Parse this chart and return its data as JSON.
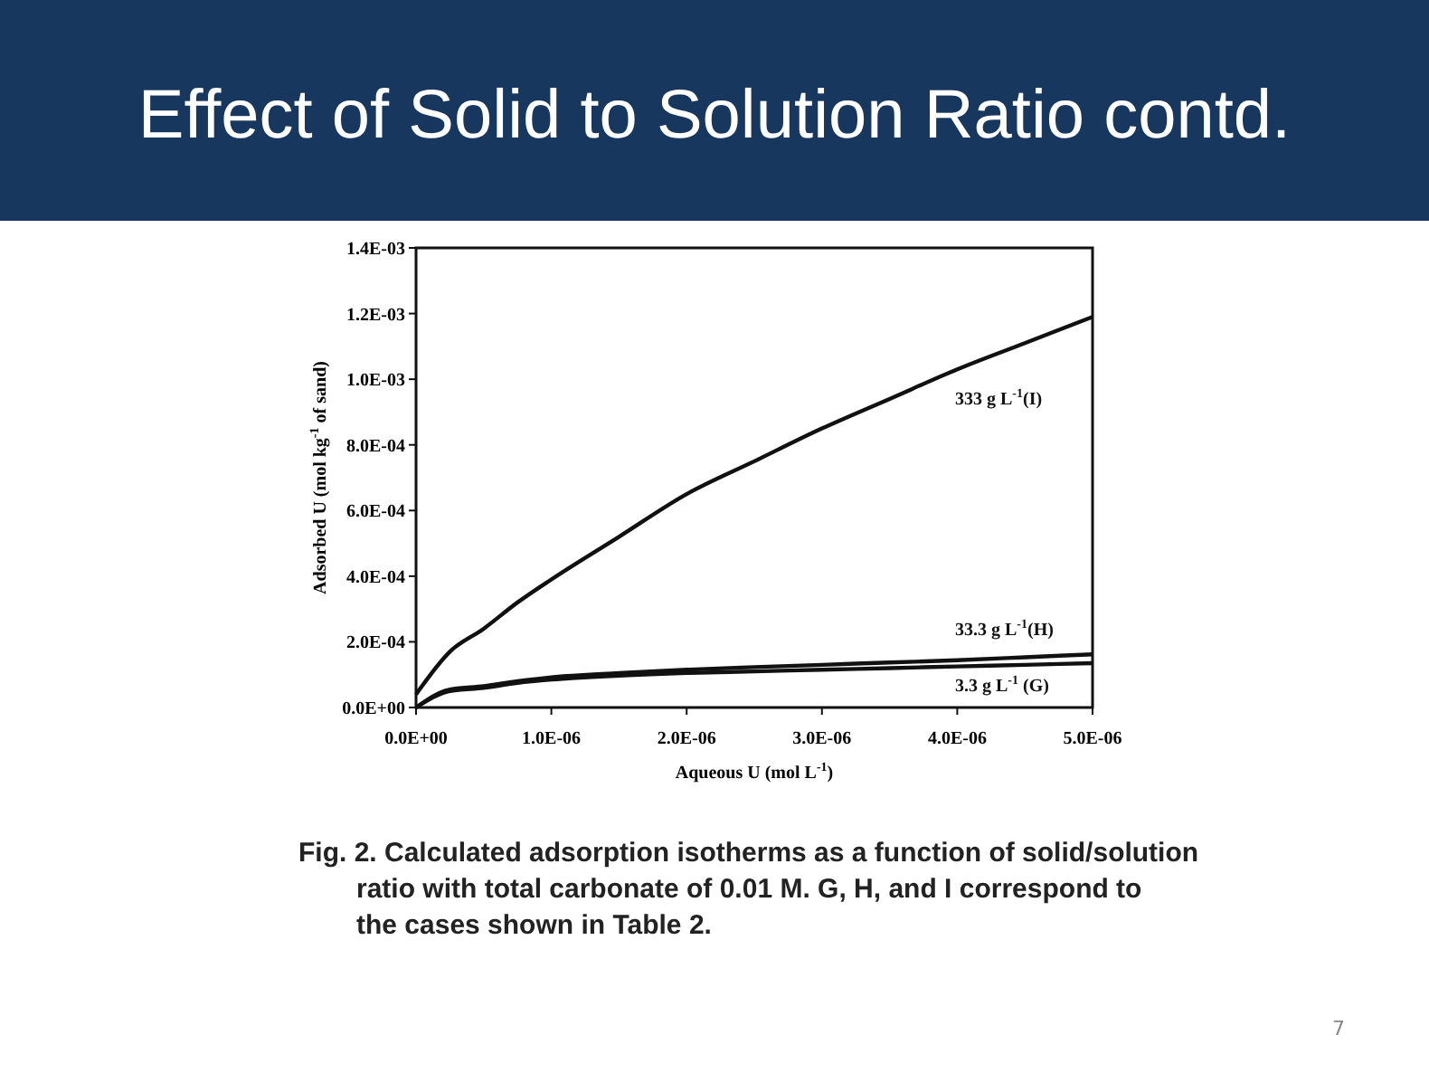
{
  "chart_data": {
    "type": "line",
    "title": "Effect of Solid to Solution Ratio contd.",
    "xlabel": "Aqueous U (mol L$^{-1}$)",
    "ylabel": "Adsorbed U (mol kg$^{-1}$ of sand)",
    "xlim": [
      0,
      5e-06
    ],
    "ylim": [
      0,
      0.0014
    ],
    "xticks": [
      {
        "value": 0,
        "label": "0.0E+00"
      },
      {
        "value": 1e-06,
        "label": "1.0E-06"
      },
      {
        "value": 2e-06,
        "label": "2.0E-06"
      },
      {
        "value": 3e-06,
        "label": "3.0E-06"
      },
      {
        "value": 4e-06,
        "label": "4.0E-06"
      },
      {
        "value": 5e-06,
        "label": "5.0E-06"
      }
    ],
    "yticks": [
      {
        "value": 0,
        "label": "0.0E+00"
      },
      {
        "value": 0.0002,
        "label": "2.0E-04"
      },
      {
        "value": 0.0004,
        "label": "4.0E-04"
      },
      {
        "value": 0.0006,
        "label": "6.0E-04"
      },
      {
        "value": 0.0008,
        "label": "8.0E-04"
      },
      {
        "value": 0.001,
        "label": "1.0E-03"
      },
      {
        "value": 0.0012,
        "label": "1.2E-03"
      },
      {
        "value": 0.0014,
        "label": "1.4E-03"
      }
    ],
    "grid": false,
    "marker": "none",
    "line_style": "solid",
    "x": [
      0,
      2.5e-07,
      5e-07,
      7.5e-07,
      1e-06,
      1.5e-06,
      2e-06,
      2.5e-06,
      3e-06,
      3.5e-06,
      4e-06,
      4.5e-06,
      5e-06
    ],
    "series": [
      {
        "name": "333 g L$^{-1}$(I)",
        "color": "#111111",
        "values": [
          4e-05,
          0.00017,
          0.00024,
          0.00032,
          0.00039,
          0.00052,
          0.00065,
          0.00075,
          0.00085,
          0.00094,
          0.00103,
          0.00111,
          0.00119
        ]
      },
      {
        "name": "33.3 g L$^{-1}$(H)",
        "color": "#111111",
        "values": [
          0,
          5.5e-05,
          6.5e-05,
          8e-05,
          9.2e-05,
          0.000105,
          0.000115,
          0.000123,
          0.00013,
          0.000137,
          0.000144,
          0.000153,
          0.000162
        ]
      },
      {
        "name": "3.3 g L$^{-1}$ (G)",
        "color": "#111111",
        "values": [
          0,
          5e-05,
          6e-05,
          7.5e-05,
          8.5e-05,
          9.7e-05,
          0.000105,
          0.00011,
          0.000115,
          0.00012,
          0.000125,
          0.00013,
          0.000135
        ]
      }
    ],
    "annotations": [
      "Fig. 2. Calculated adsorption isotherms as a function of solid/solution\nratio with total carbonate of 0.01 M. G, H, and I correspond to\nthe cases shown in Table 2.",
      "7"
    ]
  }
}
